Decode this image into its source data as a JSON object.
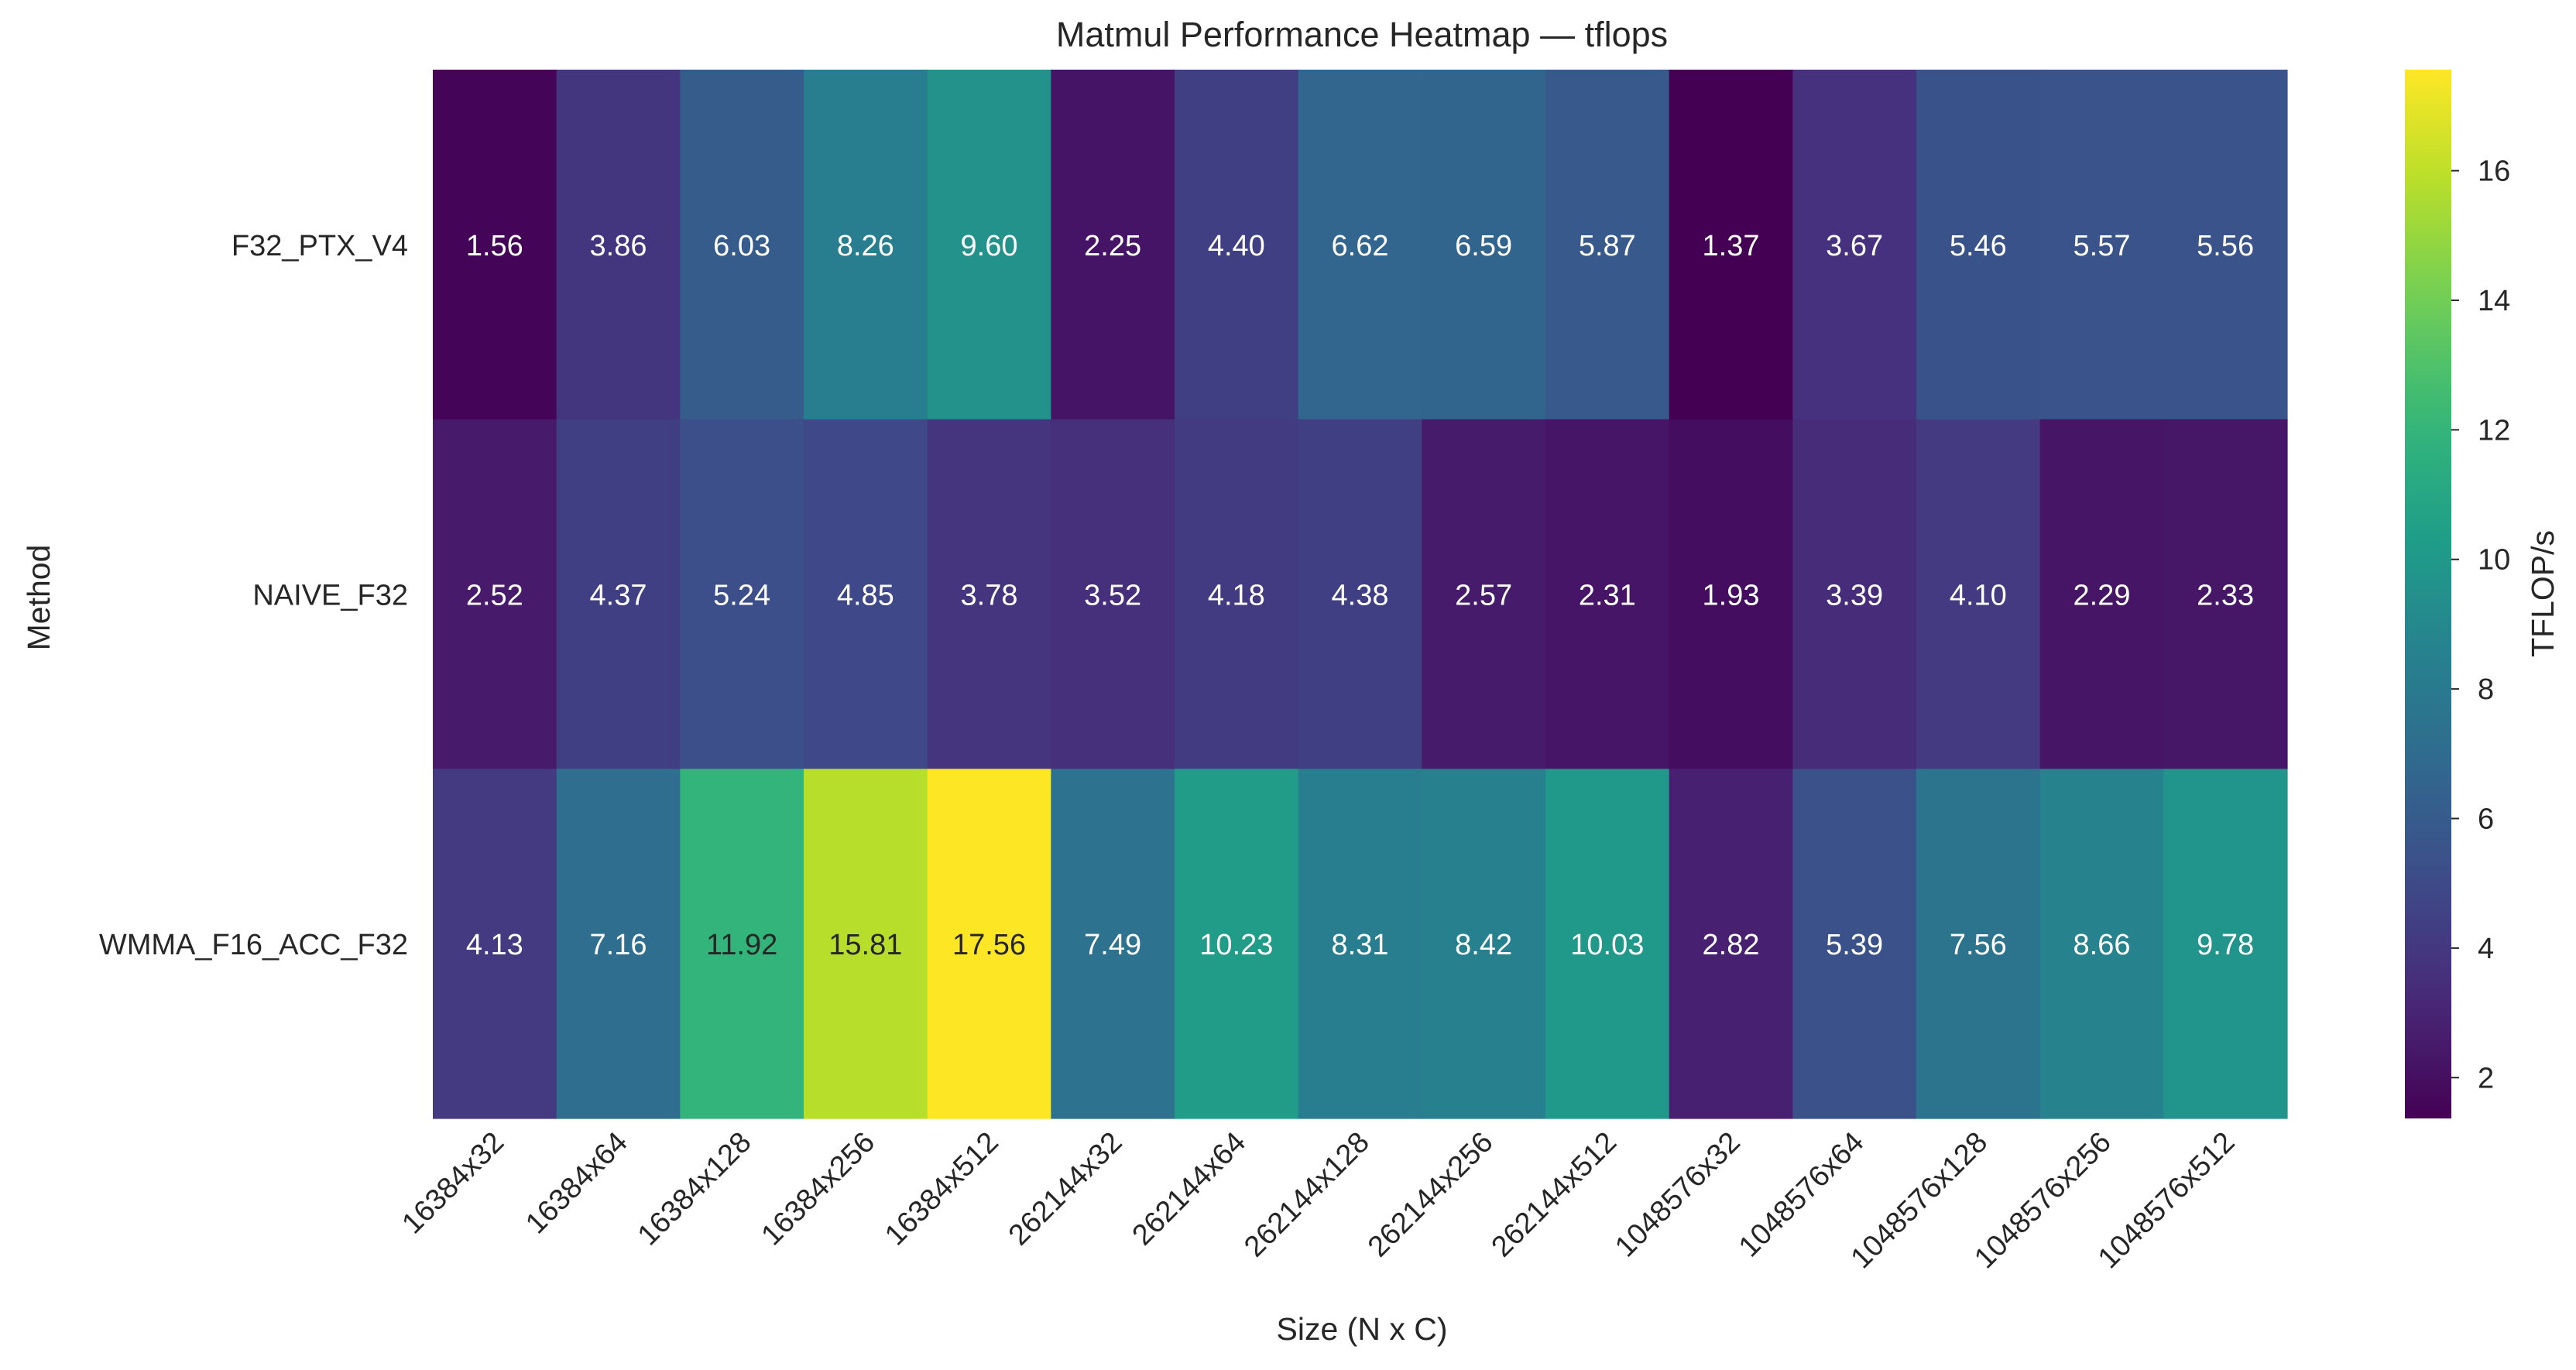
{
  "chart_data": {
    "type": "heatmap",
    "title": "Matmul Performance Heatmap — tflops",
    "xlabel": "Size (N x C)",
    "ylabel": "Method",
    "x_categories": [
      "16384x32",
      "16384x64",
      "16384x128",
      "16384x256",
      "16384x512",
      "262144x32",
      "262144x64",
      "262144x128",
      "262144x256",
      "262144x512",
      "1048576x32",
      "1048576x64",
      "1048576x128",
      "1048576x256",
      "1048576x512"
    ],
    "y_categories": [
      "F32_PTX_V4",
      "NAIVE_F32",
      "WMMA_F16_ACC_F32"
    ],
    "values": [
      [
        1.56,
        3.86,
        6.03,
        8.26,
        9.6,
        2.25,
        4.4,
        6.62,
        6.59,
        5.87,
        1.37,
        3.67,
        5.46,
        5.57,
        5.56
      ],
      [
        2.52,
        4.37,
        5.24,
        4.85,
        3.78,
        3.52,
        4.18,
        4.38,
        2.57,
        2.31,
        1.93,
        3.39,
        4.1,
        2.29,
        2.33
      ],
      [
        4.13,
        7.16,
        11.92,
        15.81,
        17.56,
        7.49,
        10.23,
        8.31,
        8.42,
        10.03,
        2.82,
        5.39,
        7.56,
        8.66,
        9.78
      ]
    ],
    "colorbar": {
      "label": "TFLOP/s",
      "colormap": "viridis",
      "vmin": 1.37,
      "vmax": 17.56,
      "ticks": [
        2,
        4,
        6,
        8,
        10,
        12,
        14,
        16
      ]
    },
    "grid": false,
    "legend": "colorbar-right"
  }
}
